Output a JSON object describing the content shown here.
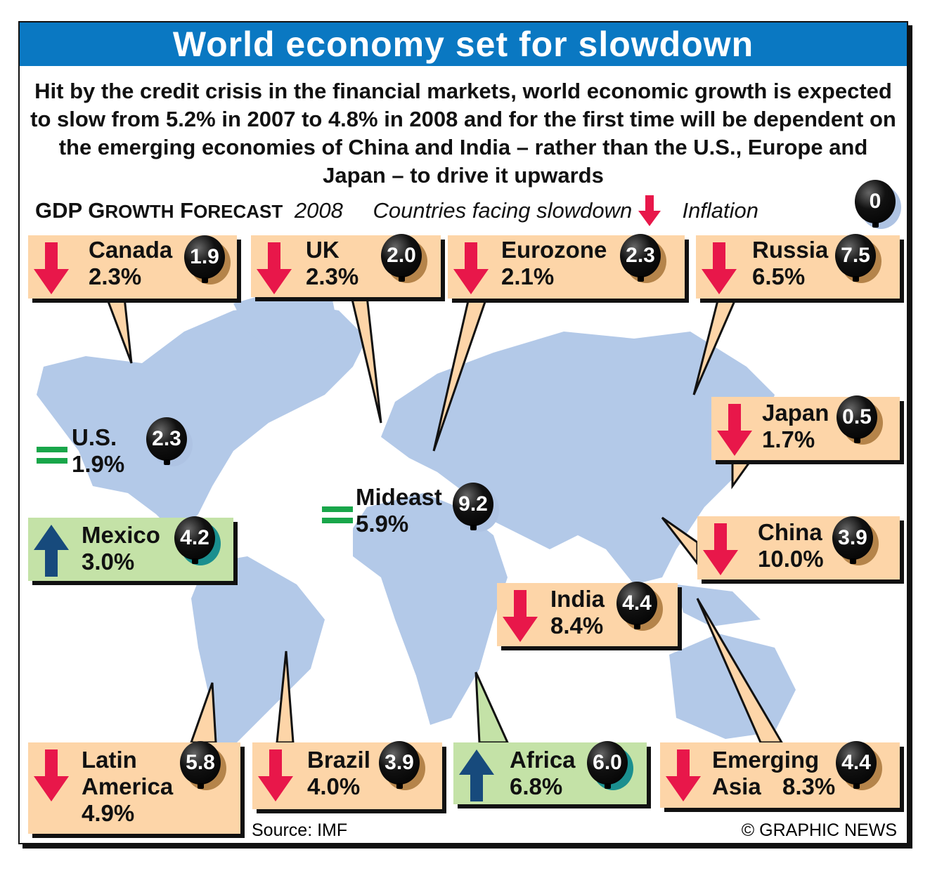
{
  "title": "World economy set for slowdown",
  "intro": "Hit by the credit crisis in the financial markets, world economic growth is expected to slow from 5.2% in 2007 to 4.8% in 2008 and for the first time will be dependent on the emerging economies of China and India – rather than the U.S., Europe and Japan – to drive it upwards",
  "legend": {
    "gdp_prefix_1": "GDP G",
    "gdp_small_1": "ROWTH",
    "gdp_prefix_2": " F",
    "gdp_small_2": "ORECAST",
    "year": "2008",
    "slowdown_label": "Countries facing slowdown",
    "inflation_label": "Inflation",
    "inflation_example": "0"
  },
  "colors": {
    "down": "#e8174a",
    "up": "#174a7c",
    "same": "#19a64a",
    "box": "#fdd5a8",
    "box_up": "#c4e2a7",
    "map": "#b3c9e8",
    "title_bar": "#0a78c2"
  },
  "regions": [
    {
      "name": "Canada",
      "growth": "2.3%",
      "inflation": "1.9",
      "trend": "down"
    },
    {
      "name": "UK",
      "growth": "2.3%",
      "inflation": "2.0",
      "trend": "down"
    },
    {
      "name": "Eurozone",
      "growth": "2.1%",
      "inflation": "2.3",
      "trend": "down"
    },
    {
      "name": "Russia",
      "growth": "6.5%",
      "inflation": "7.5",
      "trend": "down"
    },
    {
      "name": "U.S.",
      "growth": "1.9%",
      "inflation": "2.3",
      "trend": "same"
    },
    {
      "name": "Japan",
      "growth": "1.7%",
      "inflation": "0.5",
      "trend": "down"
    },
    {
      "name": "Mideast",
      "growth": "5.9%",
      "inflation": "9.2",
      "trend": "same"
    },
    {
      "name": "Mexico",
      "growth": "3.0%",
      "inflation": "4.2",
      "trend": "up"
    },
    {
      "name": "China",
      "growth": "10.0%",
      "inflation": "3.9",
      "trend": "down"
    },
    {
      "name": "India",
      "growth": "8.4%",
      "inflation": "4.4",
      "trend": "down"
    },
    {
      "name": "Latin America",
      "growth": "4.9%",
      "inflation": "5.8",
      "trend": "down"
    },
    {
      "name": "Brazil",
      "growth": "4.0%",
      "inflation": "3.9",
      "trend": "down"
    },
    {
      "name": "Africa",
      "growth": "6.8%",
      "inflation": "6.0",
      "trend": "up"
    },
    {
      "name": "Emerging Asia",
      "growth": "8.3%",
      "inflation": "4.4",
      "trend": "down"
    }
  ],
  "source": "Source: IMF",
  "credit": "© GRAPHIC NEWS"
}
